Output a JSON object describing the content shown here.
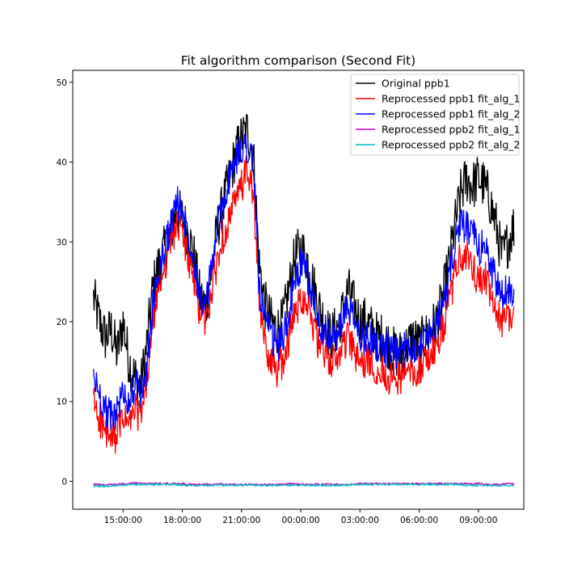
{
  "chart_data": {
    "type": "line",
    "title": "Fit algorithm comparison (Second Fit)",
    "xlabel": "",
    "ylabel": "",
    "x_unit": "time of day (hours, continuous across midnight)",
    "xlim": [
      12.45,
      35.3
    ],
    "ylim": [
      -3.5,
      51.5
    ],
    "x_ticks": [
      {
        "x": 15,
        "label": "15:00:00"
      },
      {
        "x": 18,
        "label": "18:00:00"
      },
      {
        "x": 21,
        "label": "21:00:00"
      },
      {
        "x": 24,
        "label": "00:00:00"
      },
      {
        "x": 27,
        "label": "03:00:00"
      },
      {
        "x": 30,
        "label": "06:00:00"
      },
      {
        "x": 33,
        "label": "09:00:00"
      }
    ],
    "y_ticks": [
      {
        "y": 0,
        "label": "0"
      },
      {
        "y": 10,
        "label": "10"
      },
      {
        "y": 20,
        "label": "20"
      },
      {
        "y": 30,
        "label": "30"
      },
      {
        "y": 40,
        "label": "40"
      },
      {
        "y": 50,
        "label": "50"
      }
    ],
    "grid": false,
    "legend_position": "top-right",
    "x": [
      13.5,
      13.8,
      14.1,
      14.4,
      14.7,
      15.0,
      15.3,
      15.6,
      15.9,
      16.2,
      16.5,
      16.8,
      17.1,
      17.4,
      17.7,
      18.0,
      18.3,
      18.6,
      18.9,
      19.2,
      19.5,
      19.8,
      20.1,
      20.4,
      20.7,
      21.0,
      21.3,
      21.6,
      21.9,
      22.2,
      22.5,
      22.8,
      23.1,
      23.4,
      23.7,
      24.0,
      24.3,
      24.6,
      24.9,
      25.2,
      25.5,
      25.8,
      26.1,
      26.4,
      26.7,
      27.0,
      27.3,
      27.6,
      27.9,
      28.2,
      28.5,
      28.8,
      29.1,
      29.4,
      29.7,
      30.0,
      30.3,
      30.6,
      30.9,
      31.2,
      31.5,
      31.8,
      32.1,
      32.4,
      32.7,
      33.0,
      33.3,
      33.6,
      33.9,
      34.2,
      34.5,
      34.8
    ],
    "series": [
      {
        "name": "Original ppb1",
        "color": "#000000",
        "values": [
          23,
          20,
          18,
          19,
          16,
          20,
          15,
          13,
          12,
          17,
          24,
          27,
          29,
          31,
          34,
          33,
          31,
          28,
          23,
          22,
          27,
          32,
          35,
          38,
          41,
          43,
          44,
          41,
          27,
          22,
          20,
          19,
          20,
          24,
          28,
          29,
          28,
          25,
          22,
          20,
          18,
          19,
          21,
          24,
          22,
          20,
          20,
          19,
          18,
          18,
          17,
          16,
          16,
          17,
          18,
          17,
          18,
          19,
          20,
          23,
          27,
          32,
          36,
          38,
          37,
          38,
          37,
          35,
          32,
          28,
          30,
          32
        ]
      },
      {
        "name": "Reprocessed ppb1 fit_alg_1",
        "color": "#ff0000",
        "values": [
          10,
          8,
          6,
          5,
          6,
          8,
          7,
          9,
          8,
          12,
          20,
          24,
          27,
          30,
          32,
          31,
          28,
          25,
          21,
          20,
          24,
          28,
          31,
          33,
          35,
          37,
          39,
          36,
          22,
          17,
          15,
          14,
          15,
          18,
          21,
          23,
          23,
          20,
          17,
          16,
          15,
          15,
          17,
          18,
          16,
          15,
          15,
          15,
          14,
          14,
          13,
          13,
          13,
          14,
          14,
          14,
          15,
          16,
          17,
          19,
          22,
          26,
          28,
          28,
          27,
          25,
          26,
          23,
          21,
          20,
          21,
          21
        ]
      },
      {
        "name": "Reprocessed ppb1 fit_alg_2",
        "color": "#0000ff",
        "values": [
          13,
          11,
          9,
          8,
          9,
          11,
          10,
          12,
          11,
          14,
          22,
          26,
          29,
          32,
          35,
          34,
          31,
          28,
          23,
          22,
          27,
          32,
          35,
          38,
          40,
          42,
          42,
          40,
          24,
          20,
          18,
          17,
          18,
          21,
          25,
          27,
          26,
          23,
          20,
          19,
          18,
          18,
          20,
          22,
          20,
          18,
          18,
          18,
          17,
          17,
          16,
          16,
          16,
          17,
          17,
          17,
          18,
          19,
          20,
          22,
          25,
          30,
          32,
          32,
          31,
          29,
          30,
          27,
          25,
          23,
          24,
          24
        ]
      },
      {
        "name": "Reprocessed ppb2 fit_alg_1",
        "color": "#bf00bf",
        "values": [
          -0.4,
          -0.4,
          -0.5,
          -0.4,
          -0.4,
          -0.3,
          -0.3,
          -0.2,
          -0.3,
          -0.3,
          -0.3,
          -0.3,
          -0.3,
          -0.3,
          -0.3,
          -0.3,
          -0.4,
          -0.4,
          -0.4,
          -0.4,
          -0.4,
          -0.3,
          -0.4,
          -0.4,
          -0.4,
          -0.4,
          -0.4,
          -0.4,
          -0.4,
          -0.4,
          -0.4,
          -0.4,
          -0.4,
          -0.3,
          -0.3,
          -0.4,
          -0.4,
          -0.4,
          -0.4,
          -0.4,
          -0.4,
          -0.4,
          -0.4,
          -0.4,
          -0.3,
          -0.3,
          -0.3,
          -0.3,
          -0.3,
          -0.3,
          -0.3,
          -0.3,
          -0.3,
          -0.3,
          -0.3,
          -0.3,
          -0.3,
          -0.3,
          -0.3,
          -0.3,
          -0.3,
          -0.3,
          -0.3,
          -0.3,
          -0.3,
          -0.3,
          -0.4,
          -0.4,
          -0.4,
          -0.4,
          -0.3,
          -0.4
        ]
      },
      {
        "name": "Reprocessed ppb2 fit_alg_2",
        "color": "#00bfbf",
        "values": [
          -0.6,
          -0.6,
          -0.6,
          -0.6,
          -0.5,
          -0.5,
          -0.4,
          -0.4,
          -0.4,
          -0.4,
          -0.4,
          -0.4,
          -0.4,
          -0.4,
          -0.4,
          -0.5,
          -0.5,
          -0.5,
          -0.5,
          -0.5,
          -0.5,
          -0.4,
          -0.5,
          -0.5,
          -0.5,
          -0.5,
          -0.5,
          -0.5,
          -0.5,
          -0.5,
          -0.5,
          -0.5,
          -0.5,
          -0.5,
          -0.5,
          -0.5,
          -0.5,
          -0.5,
          -0.5,
          -0.5,
          -0.5,
          -0.5,
          -0.5,
          -0.5,
          -0.4,
          -0.4,
          -0.4,
          -0.4,
          -0.4,
          -0.4,
          -0.4,
          -0.4,
          -0.4,
          -0.4,
          -0.4,
          -0.4,
          -0.4,
          -0.4,
          -0.4,
          -0.4,
          -0.4,
          -0.4,
          -0.4,
          -0.5,
          -0.5,
          -0.5,
          -0.5,
          -0.5,
          -0.6,
          -0.5,
          -0.5,
          -0.5
        ]
      }
    ]
  }
}
